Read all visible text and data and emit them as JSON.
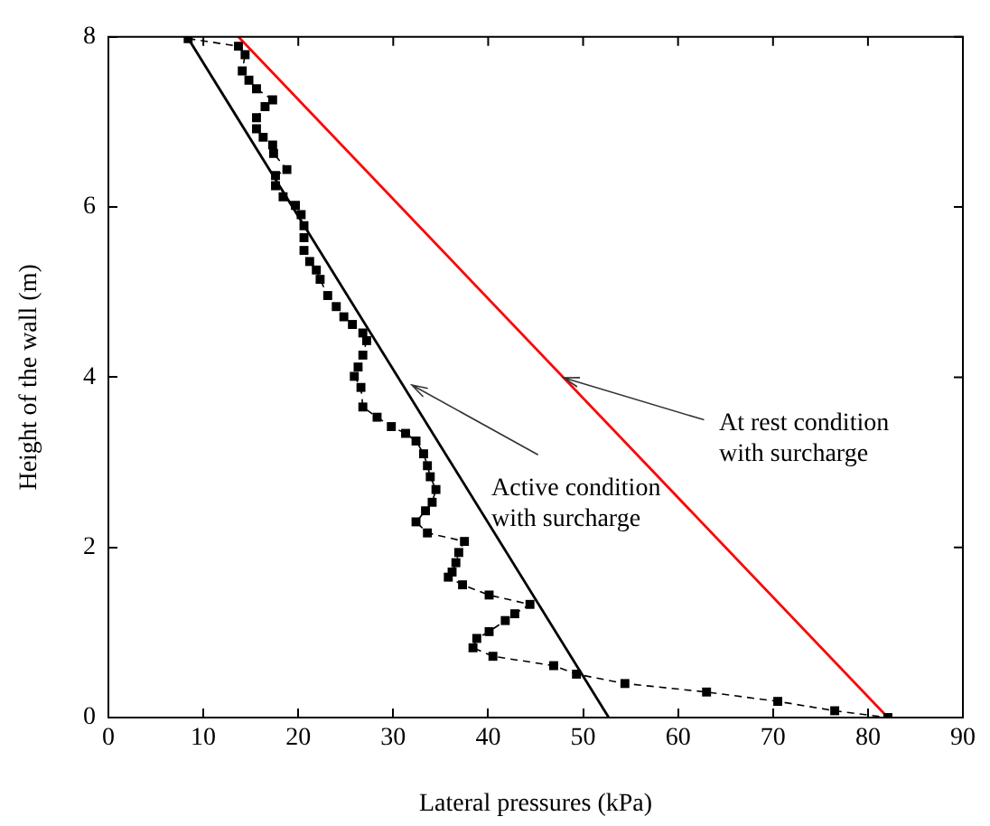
{
  "chart_data": {
    "type": "line",
    "xlabel": "Lateral pressures (kPa)",
    "ylabel": "Height of the wall (m)",
    "xlim": [
      0,
      90
    ],
    "xticks": [
      0,
      10,
      20,
      30,
      40,
      50,
      60,
      70,
      80,
      90
    ],
    "ylim": [
      0,
      8
    ],
    "yticks": [
      0,
      2,
      4,
      6,
      8
    ],
    "grid": false,
    "legend": false,
    "annotations": [
      {
        "text": "At rest condition\nwith surcharge",
        "x": 48,
        "y": 4
      },
      {
        "text": "Active condition\nwith surcharge",
        "x": 32,
        "y": 3.9
      }
    ],
    "series": [
      {
        "color": "#000000",
        "marker": "square",
        "line_style": "dashed",
        "x": [
          8.4,
          13.7,
          14.4,
          14.1,
          14.8,
          15.6,
          17.3,
          16.5,
          15.6,
          15.6,
          16.3,
          17.3,
          17.4,
          18.8,
          17.6,
          17.6,
          18.4,
          19.7,
          20.3,
          20.6,
          20.6,
          20.6,
          21.2,
          21.9,
          22.3,
          23.1,
          24.0,
          24.8,
          25.7,
          26.8,
          27.2,
          26.8,
          26.3,
          25.9,
          26.6,
          26.8,
          28.3,
          29.8,
          31.3,
          32.4,
          33.2,
          33.6,
          33.9,
          34.5,
          34.1,
          33.4,
          32.4,
          33.6,
          37.5,
          36.9,
          36.6,
          36.2,
          35.8,
          37.3,
          40.1,
          44.4,
          42.8,
          41.8,
          40.1,
          38.8,
          38.4,
          40.5,
          46.9,
          49.3,
          54.4,
          63.0,
          70.5,
          76.5,
          82.1
        ],
        "values": [
          7.98,
          7.89,
          7.79,
          7.6,
          7.49,
          7.39,
          7.26,
          7.18,
          7.05,
          6.92,
          6.82,
          6.73,
          6.63,
          6.44,
          6.37,
          6.25,
          6.12,
          6.02,
          5.91,
          5.78,
          5.64,
          5.49,
          5.36,
          5.26,
          5.15,
          4.96,
          4.83,
          4.71,
          4.62,
          4.52,
          4.43,
          4.26,
          4.12,
          4.01,
          3.88,
          3.65,
          3.53,
          3.42,
          3.34,
          3.25,
          3.1,
          2.96,
          2.83,
          2.68,
          2.53,
          2.43,
          2.3,
          2.17,
          2.07,
          1.94,
          1.82,
          1.71,
          1.65,
          1.56,
          1.44,
          1.33,
          1.22,
          1.14,
          1.01,
          0.93,
          0.82,
          0.72,
          0.61,
          0.51,
          0.4,
          0.3,
          0.19,
          0.08,
          0.0
        ]
      },
      {
        "color": "#000000",
        "marker": "none",
        "line_style": "solid",
        "x": [
          8.3,
          52.7
        ],
        "values": [
          8,
          0
        ]
      },
      {
        "color": "#ff0000",
        "marker": "none",
        "line_style": "solid",
        "x": [
          13.7,
          82.1
        ],
        "values": [
          8,
          0
        ]
      }
    ]
  }
}
